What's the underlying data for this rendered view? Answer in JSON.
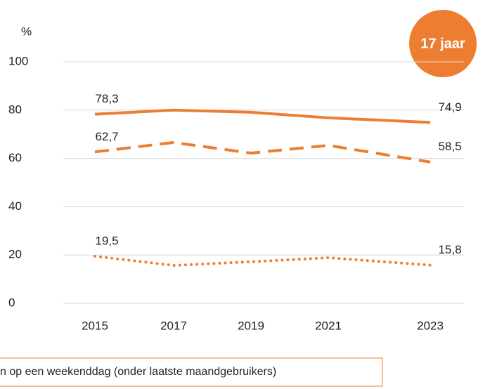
{
  "chart_data": {
    "type": "line",
    "y_label": "%",
    "badge": "17 jaar",
    "footnote": "n op een weekenddag (onder laatste maandgebruikers)",
    "categories": [
      "2015",
      "2017",
      "2019",
      "2021",
      "2023"
    ],
    "ylim": [
      0,
      100
    ],
    "yticks": [
      0,
      20,
      40,
      60,
      80,
      100
    ],
    "grid": true,
    "series": [
      {
        "color": "#ed7d31",
        "dash": "solid",
        "values": [
          78.3,
          80.0,
          79.1,
          76.8,
          74.9
        ],
        "value_labels": [
          "78,3",
          null,
          null,
          null,
          "74,9"
        ]
      },
      {
        "color": "#ed7d31",
        "dash": "dashed",
        "values": [
          62.7,
          66.6,
          62.2,
          65.4,
          58.5
        ],
        "value_labels": [
          "62,7",
          null,
          null,
          null,
          "58,5"
        ]
      },
      {
        "color": "#ed7d31",
        "dash": "dotted",
        "values": [
          19.5,
          15.7,
          17.2,
          18.9,
          15.8
        ],
        "value_labels": [
          "19,5",
          null,
          null,
          null,
          "15,8"
        ]
      }
    ]
  }
}
